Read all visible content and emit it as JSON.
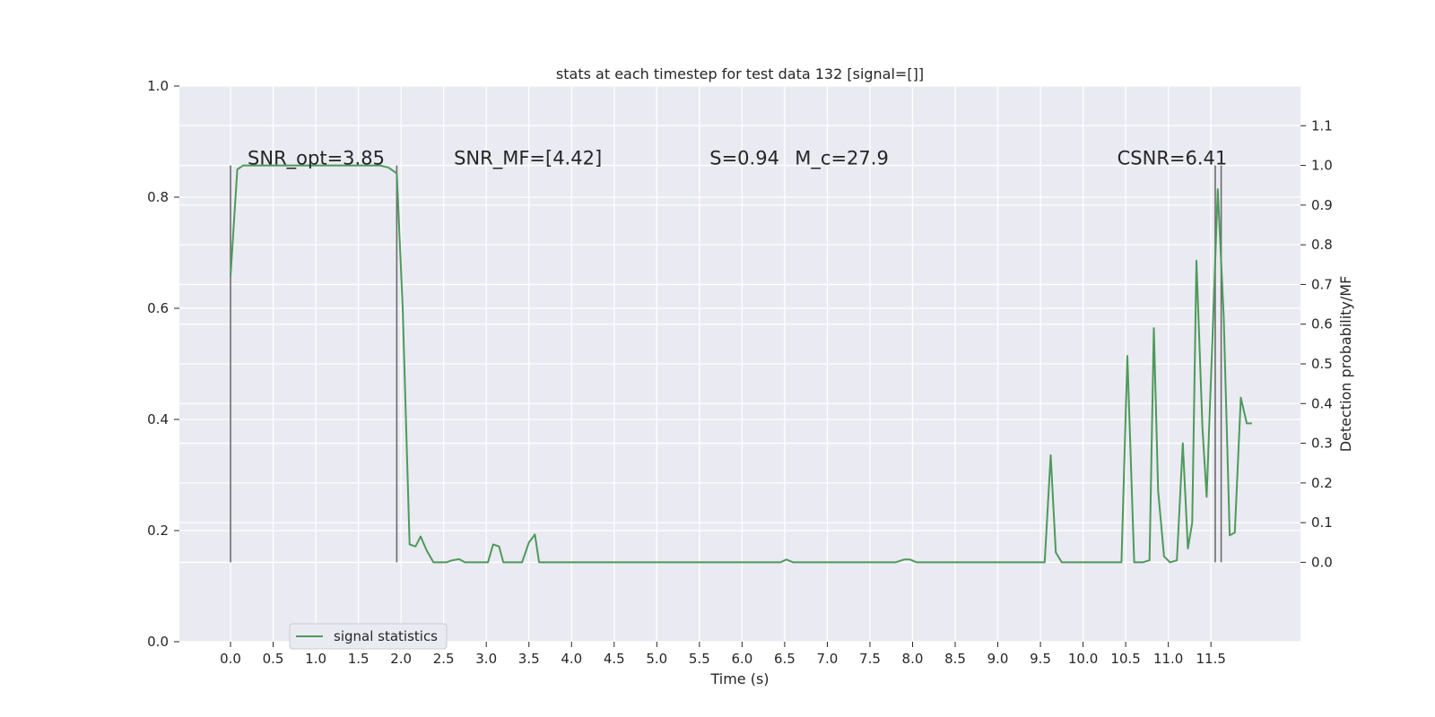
{
  "chart_data": {
    "type": "line",
    "title": "stats at each timestep for test data 132 [signal=[]]",
    "xlabel": "Time (s)",
    "ylabel": "",
    "y2label": "Detection probability/MF",
    "xlim": [
      -0.6,
      12.55
    ],
    "ylim": [
      0.0,
      1.0
    ],
    "y2lim": [
      -0.2,
      1.2
    ],
    "grid": true,
    "legend_position": "lower-left",
    "x_ticks": [
      0.0,
      0.5,
      1.0,
      1.5,
      2.0,
      2.5,
      3.0,
      3.5,
      4.0,
      4.5,
      5.0,
      5.5,
      6.0,
      6.5,
      7.0,
      7.5,
      8.0,
      8.5,
      9.0,
      9.5,
      10.0,
      10.5,
      11.0,
      11.5
    ],
    "x_tick_labels": [
      "0.0",
      "0.5",
      "1.0",
      "1.5",
      "2.0",
      "2.5",
      "3.0",
      "3.5",
      "4.0",
      "4.5",
      "5.0",
      "5.5",
      "6.0",
      "6.5",
      "7.0",
      "7.5",
      "8.0",
      "8.5",
      "9.0",
      "9.5",
      "10.0",
      "10.5",
      "11.0",
      "11.5"
    ],
    "y_ticks": [
      0.0,
      0.2,
      0.4,
      0.6,
      0.8,
      1.0
    ],
    "y_tick_labels": [
      "0.0",
      "0.2",
      "0.4",
      "0.6",
      "0.8",
      "1.0"
    ],
    "y2_ticks": [
      0.0,
      0.1,
      0.2,
      0.3,
      0.4,
      0.5,
      0.6,
      0.7,
      0.8,
      0.9,
      1.0,
      1.1
    ],
    "y2_tick_labels": [
      "0.0",
      "0.1",
      "0.2",
      "0.3",
      "0.4",
      "0.5",
      "0.6",
      "0.7",
      "0.8",
      "0.9",
      "1.0",
      "1.1"
    ],
    "vertical_markers": [
      0.0,
      1.95,
      11.55,
      11.62
    ],
    "annotations": [
      {
        "text": "SNR_opt=3.85",
        "x": 0.2,
        "y2": 1.0
      },
      {
        "text": "SNR_MF=[4.42]",
        "x": 2.62,
        "y2": 1.0
      },
      {
        "text": "S=0.94",
        "x": 5.62,
        "y2": 1.0
      },
      {
        "text": "M_c=27.9",
        "x": 6.62,
        "y2": 1.0
      },
      {
        "text": "CSNR=6.41",
        "x": 10.4,
        "y2": 1.0
      }
    ],
    "series": [
      {
        "name": "signal statistics",
        "color": "#4c9a5a",
        "axis": "right",
        "x": [
          0.0,
          0.08,
          0.15,
          0.25,
          0.4,
          0.6,
          0.8,
          1.0,
          1.2,
          1.4,
          1.6,
          1.75,
          1.85,
          1.95,
          2.02,
          2.1,
          2.17,
          2.23,
          2.3,
          2.38,
          2.45,
          2.53,
          2.6,
          2.68,
          2.75,
          2.85,
          2.95,
          3.02,
          3.08,
          3.15,
          3.2,
          3.28,
          3.35,
          3.42,
          3.5,
          3.57,
          3.62,
          3.7,
          3.8,
          4.0,
          4.5,
          5.0,
          5.5,
          6.0,
          6.3,
          6.45,
          6.52,
          6.6,
          7.0,
          7.5,
          7.8,
          7.9,
          7.97,
          8.05,
          8.2,
          8.5,
          9.0,
          9.4,
          9.55,
          9.62,
          9.68,
          9.75,
          9.85,
          10.0,
          10.2,
          10.45,
          10.52,
          10.6,
          10.7,
          10.78,
          10.83,
          10.88,
          10.95,
          11.02,
          11.1,
          11.17,
          11.23,
          11.28,
          11.33,
          11.4,
          11.45,
          11.52,
          11.58,
          11.65,
          11.72,
          11.78,
          11.85,
          11.92,
          11.98
        ],
        "y": [
          0.72,
          0.99,
          1.0,
          1.0,
          1.0,
          1.0,
          1.0,
          1.0,
          1.0,
          1.0,
          1.0,
          1.0,
          0.995,
          0.98,
          0.64,
          0.045,
          0.04,
          0.065,
          0.03,
          0.0,
          0.0,
          0.0,
          0.005,
          0.008,
          0.0,
          0.0,
          0.0,
          0.0,
          0.045,
          0.04,
          0.0,
          0.0,
          0.0,
          0.0,
          0.05,
          0.07,
          0.0,
          0.0,
          0.0,
          0.0,
          0.0,
          0.0,
          0.0,
          0.0,
          0.0,
          0.0,
          0.007,
          0.0,
          0.0,
          0.0,
          0.0,
          0.007,
          0.007,
          0.0,
          0.0,
          0.0,
          0.0,
          0.0,
          0.0,
          0.27,
          0.025,
          0.0,
          0.0,
          0.0,
          0.0,
          0.0,
          0.52,
          0.0,
          0.0,
          0.005,
          0.59,
          0.18,
          0.015,
          0.0,
          0.005,
          0.3,
          0.035,
          0.1,
          0.76,
          0.34,
          0.165,
          0.58,
          0.94,
          0.62,
          0.068,
          0.075,
          0.415,
          0.35,
          0.35
        ]
      }
    ]
  }
}
